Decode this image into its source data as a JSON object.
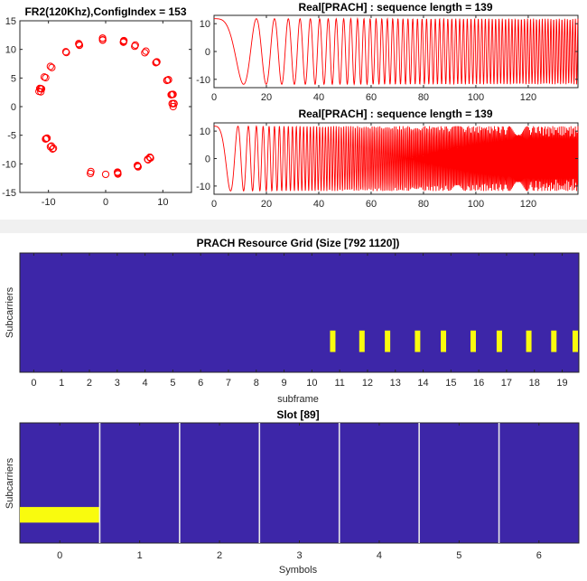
{
  "chart_data": [
    {
      "type": "scatter",
      "title": "FR2(120Khz),ConfigIndex = 153",
      "xlabel": "",
      "ylabel": "",
      "xlim": [
        -15,
        15
      ],
      "ylim": [
        -15,
        15
      ],
      "xticks": [
        "-10",
        "0",
        "10"
      ],
      "yticks": [
        "15",
        "10",
        "5",
        "0",
        "-5",
        "-10",
        "-15"
      ],
      "marker": "circle",
      "color": "#ff0000",
      "series": [
        {
          "radius": 11.8,
          "points": 70
        }
      ]
    },
    {
      "type": "line",
      "title": "Real[PRACH] : sequence length = 139",
      "xlabel": "",
      "ylabel": "",
      "xlim": [
        0,
        139
      ],
      "ylim": [
        -13,
        13
      ],
      "xticks": [
        "0",
        "20",
        "40",
        "60",
        "80",
        "100",
        "120"
      ],
      "yticks": [
        "10",
        "0",
        "-10"
      ],
      "color": "#ff0000",
      "series": [
        {
          "length": 139,
          "amplitude": 11.8,
          "root": 1
        }
      ]
    },
    {
      "type": "line",
      "title": "Real[PRACH] : sequence length = 139",
      "xlabel": "",
      "ylabel": "",
      "xlim": [
        0,
        139
      ],
      "ylim": [
        -13,
        13
      ],
      "xticks": [
        "0",
        "20",
        "40",
        "60",
        "80",
        "100",
        "120"
      ],
      "yticks": [
        "10",
        "0",
        "-10"
      ],
      "color": "#ff0000",
      "series": [
        {
          "length": 139,
          "amplitude": 11.8,
          "root": 3
        }
      ]
    },
    {
      "type": "heatmap",
      "title": "PRACH Resource Grid (Size [792 1120])",
      "xlabel": "subframe",
      "ylabel": "Subcarriers",
      "xlim": [
        -0.5,
        19.6
      ],
      "xticks": [
        "0",
        "1",
        "2",
        "3",
        "4",
        "5",
        "6",
        "7",
        "8",
        "9",
        "10",
        "11",
        "12",
        "13",
        "14",
        "15",
        "16",
        "17",
        "18",
        "19"
      ],
      "background_color": "#3d26a8",
      "highlight_color": "#f9fb0e",
      "highlights_subframe": [
        10.75,
        11.8,
        12.72,
        13.8,
        14.73,
        15.8,
        16.74,
        17.8,
        18.7,
        19.55
      ]
    },
    {
      "type": "heatmap",
      "title": "Slot [89]",
      "xlabel": "Symbols",
      "ylabel": "Subcarriers",
      "xlim": [
        -0.5,
        6.5
      ],
      "xticks": [
        "0",
        "1",
        "2",
        "3",
        "4",
        "5",
        "6"
      ],
      "background_color": "#3d26a8",
      "highlight_color": "#f9fb0e",
      "symbol_boundaries": [
        0.5,
        1.5,
        2.5,
        3.5,
        4.5,
        5.5
      ],
      "highlight": {
        "symbol_range": [
          -0.5,
          0.5
        ],
        "subcarrier_fraction_range": [
          0.7,
          0.83
        ]
      }
    }
  ]
}
